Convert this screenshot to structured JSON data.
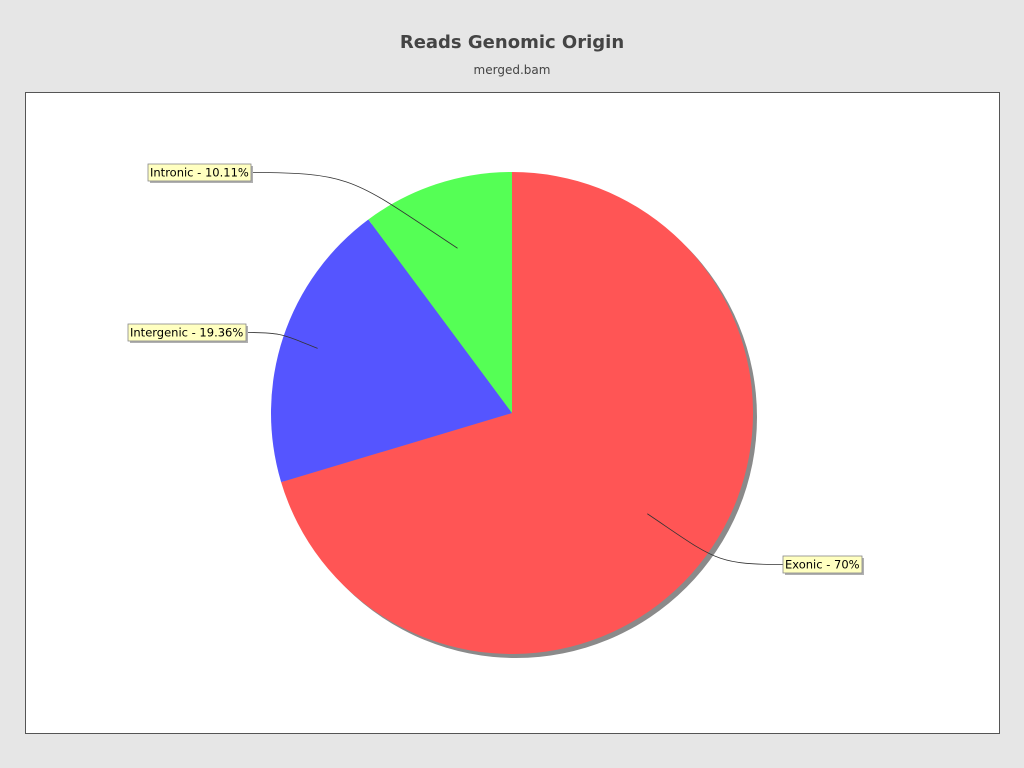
{
  "colors": {
    "page_background": "#e6e6e6",
    "plot_background": "#ffffff",
    "label_background": "#ffffc0",
    "shadow": "#8a8a8a"
  },
  "chart_data": {
    "type": "pie",
    "title": "Reads Genomic Origin",
    "subtitle": "merged.bam",
    "legend": "none",
    "slices": [
      {
        "name": "Exonic",
        "value": 70.0,
        "label": "Exonic - 70%",
        "color": "#ff5555"
      },
      {
        "name": "Intronic",
        "value": 10.11,
        "label": "Intronic - 10.11%",
        "color": "#55ff55"
      },
      {
        "name": "Intergenic",
        "value": 19.36,
        "label": "Intergenic - 19.36%",
        "color": "#5555ff"
      }
    ]
  }
}
